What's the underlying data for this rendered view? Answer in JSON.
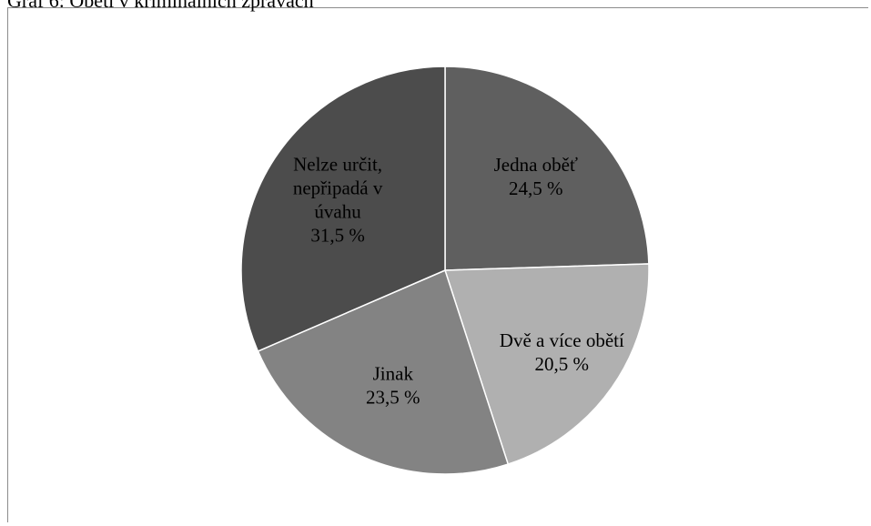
{
  "page_title": "Graf 6: Oběti v kriminálních zprávách",
  "chart_data": {
    "type": "pie",
    "title": "",
    "start_angle_deg": 0,
    "direction": "clockwise",
    "slices": [
      {
        "label_lines": [
          "Jedna oběť"
        ],
        "value_label": "24,5 %",
        "value": 24.5,
        "color": "#5f5f5f"
      },
      {
        "label_lines": [
          "Dvě a více obětí"
        ],
        "value_label": "20,5 %",
        "value": 20.5,
        "color": "#b0b0b0"
      },
      {
        "label_lines": [
          "Jinak"
        ],
        "value_label": "23,5 %",
        "value": 23.5,
        "color": "#838383"
      },
      {
        "label_lines": [
          "Nelze určit,",
          "nepřipadá v",
          "úvahu"
        ],
        "value_label": "31,5 %",
        "value": 31.5,
        "color": "#4c4c4c"
      }
    ],
    "legend": "none",
    "grid": false
  }
}
